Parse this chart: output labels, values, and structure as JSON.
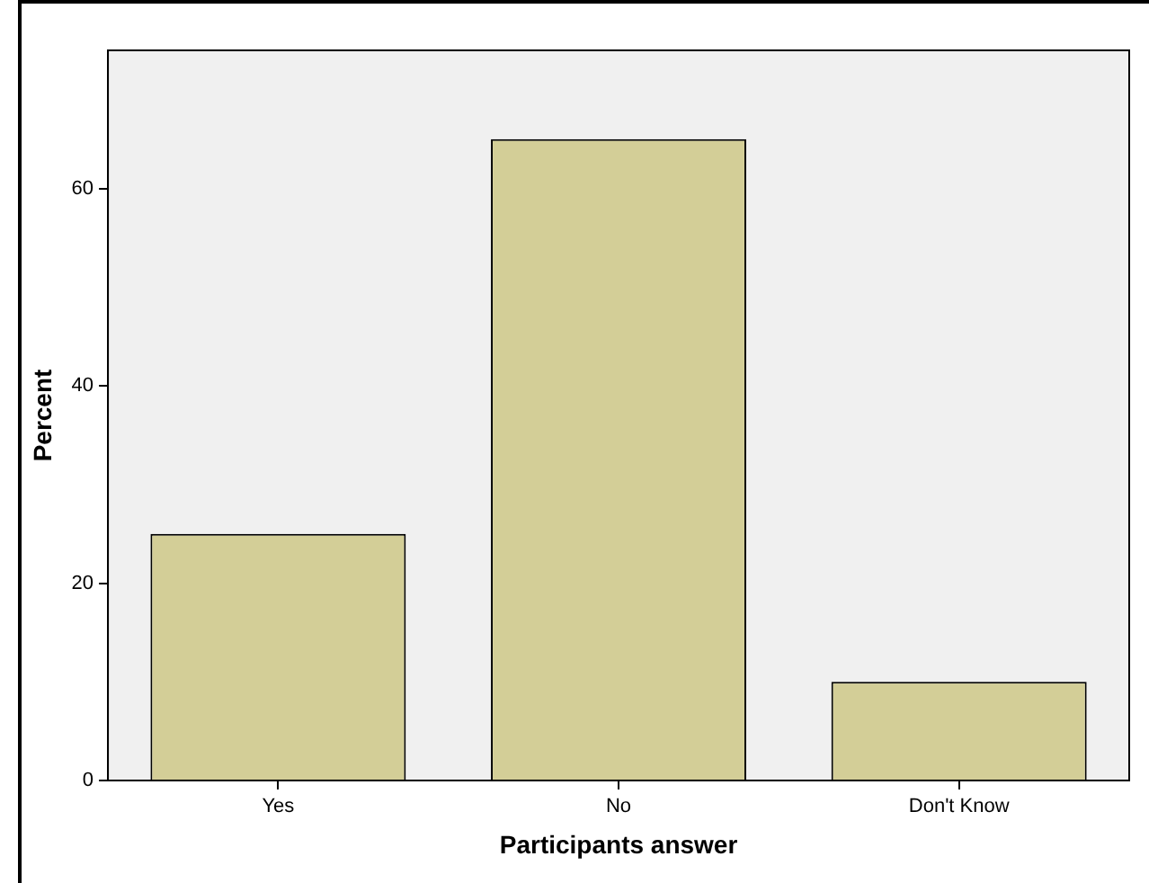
{
  "chart_data": {
    "type": "bar",
    "xlabel": "Participants answer",
    "ylabel": "Percent",
    "categories": [
      "Yes",
      "No",
      "Don't Know"
    ],
    "values": [
      25,
      65,
      10
    ],
    "color": "#d3ce97",
    "ylim": [
      0,
      74
    ],
    "yticks": [
      0,
      20,
      40,
      60
    ],
    "grid": false,
    "legend": false
  }
}
